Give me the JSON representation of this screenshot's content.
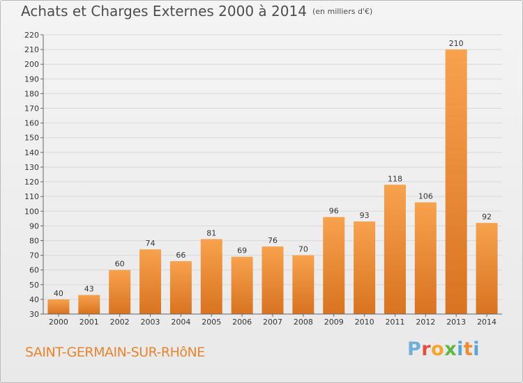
{
  "header": {
    "title": "Achats et Charges Externes 2000 à 2014",
    "unit": "(en milliers d'€)"
  },
  "commune": "SAINT-GERMAIN-SUR-RHôNE",
  "logo": {
    "text": "Proxiti"
  },
  "colors": {
    "bar_top": "#f7a24e",
    "bar_bottom": "#d9731f",
    "commune_text": "#e8842e",
    "title_text": "#4d4d4d"
  },
  "chart_data": {
    "type": "bar",
    "title": "Achats et Charges Externes 2000 à 2014",
    "subtitle": "(en milliers d'€)",
    "xlabel": "",
    "ylabel": "",
    "categories": [
      "2000",
      "2001",
      "2002",
      "2003",
      "2004",
      "2005",
      "2006",
      "2007",
      "2008",
      "2009",
      "2010",
      "2011",
      "2012",
      "2013",
      "2014"
    ],
    "values": [
      40,
      43,
      60,
      74,
      66,
      81,
      69,
      76,
      70,
      96,
      93,
      118,
      106,
      210,
      92
    ],
    "ylim": [
      30,
      220
    ],
    "yticks": [
      30,
      40,
      50,
      60,
      70,
      80,
      90,
      100,
      110,
      120,
      130,
      140,
      150,
      160,
      170,
      180,
      190,
      200,
      210,
      220
    ],
    "grid": true,
    "legend": "none"
  }
}
